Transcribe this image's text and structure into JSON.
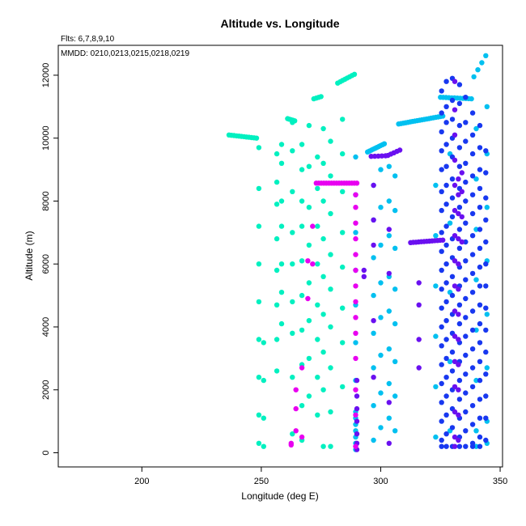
{
  "chart_data": {
    "type": "scatter",
    "title": "Altitude vs. Longitude",
    "xlabel": "Longitude (deg E)",
    "ylabel": "Altitude (m)",
    "xlim": [
      165,
      351
    ],
    "ylim": [
      -450,
      12950
    ],
    "xticks": [
      200,
      250,
      300,
      350
    ],
    "yticks": [
      0,
      2000,
      4000,
      6000,
      8000,
      10000,
      12000
    ],
    "grid": false,
    "annotations": {
      "flights": "Flts: 6,7,8,9,10",
      "dates": "MMDD: 0210,0213,0215,0218,0219"
    },
    "series": [
      {
        "color": "#00f0c0",
        "legs": [
          {
            "lon0": 236.5,
            "lon1": 248,
            "alt0": 10100,
            "alt1": 10000,
            "n": 12
          },
          {
            "lon0": 261,
            "lon1": 264,
            "alt0": 10620,
            "alt1": 10550,
            "n": 5
          },
          {
            "lon0": 272,
            "lon1": 275,
            "alt0": 11250,
            "alt1": 11320,
            "n": 4
          },
          {
            "lon0": 282,
            "lon1": 289,
            "alt0": 11750,
            "alt1": 12030,
            "n": 8
          }
        ],
        "columns": [
          {
            "lon": 249,
            "alts": [
              9700,
              8400,
              7200,
              6000,
              4800,
              3600,
              2400,
              1200,
              300
            ]
          },
          {
            "lon": 251,
            "alts": [
              3500,
              2300,
              1100,
              200
            ]
          },
          {
            "lon": 256.5,
            "alts": [
              9500,
              8600,
              7900,
              6800,
              5800,
              4700,
              3600,
              2600
            ]
          },
          {
            "lon": 258.5,
            "alts": [
              9800,
              9200,
              8000,
              7200,
              6000,
              5100,
              4100
            ]
          },
          {
            "lon": 263,
            "alts": [
              10500,
              9600,
              8300,
              7000,
              6000,
              4800,
              3800,
              2400,
              600
            ]
          },
          {
            "lon": 267,
            "alts": [
              9800,
              9000,
              8000,
              7200,
              6100,
              5000,
              3900,
              2800,
              1500,
              400
            ]
          },
          {
            "lon": 270,
            "alts": [
              10400,
              9100,
              7800,
              6600,
              5400,
              4200,
              3000,
              1800
            ]
          },
          {
            "lon": 273.5,
            "alts": [
              9400,
              8400,
              7200,
              6000,
              4700,
              3600,
              2400,
              1200
            ]
          },
          {
            "lon": 276,
            "alts": [
              10300,
              9200,
              8000,
              6800,
              5600,
              4400,
              3200,
              2000,
              200
            ]
          },
          {
            "lon": 279,
            "alts": [
              9900,
              8800,
              7600,
              6300,
              5200,
              4000,
              2700,
              1300,
              200
            ]
          },
          {
            "lon": 284,
            "alts": [
              10600,
              9500,
              8300,
              7000,
              5900,
              4600,
              3500,
              2100
            ]
          }
        ]
      },
      {
        "color": "#00c0f0",
        "legs": [
          {
            "lon0": 294.5,
            "lon1": 301.5,
            "alt0": 9560,
            "alt1": 9820,
            "n": 10
          },
          {
            "lon0": 307.5,
            "lon1": 326,
            "alt0": 10450,
            "alt1": 10700,
            "n": 20
          },
          {
            "lon0": 325,
            "lon1": 338,
            "alt0": 11300,
            "alt1": 11250,
            "n": 12
          },
          {
            "lon0": 339,
            "lon1": 344,
            "alt0": 11950,
            "alt1": 12620,
            "n": 4
          }
        ],
        "columns": [
          {
            "lon": 289.5,
            "alts": [
              9400,
              8200,
              7000,
              5800,
              4700,
              3500,
              2300,
              1300,
              1100,
              900,
              700,
              500,
              300,
              100
            ]
          },
          {
            "lon": 297,
            "alts": [
              8500,
              7400,
              6200,
              5000,
              3800,
              2700,
              1500,
              400
            ]
          },
          {
            "lon": 300,
            "alts": [
              9000,
              7800,
              6600,
              5400,
              4300,
              3100,
              1900,
              800
            ]
          },
          {
            "lon": 303.5,
            "alts": [
              9100,
              8000,
              6900,
              5600,
              4500,
              3300,
              2200,
              1100
            ]
          },
          {
            "lon": 306,
            "alts": [
              8800,
              7700,
              6500,
              5200,
              4100,
              2900,
              1800,
              700
            ]
          },
          {
            "lon": 323,
            "alts": [
              8500,
              6900,
              5300,
              3700,
              2100,
              500
            ]
          },
          {
            "lon": 329,
            "alts": [
              9500,
              7300,
              5100,
              2900,
              700
            ]
          },
          {
            "lon": 340,
            "alts": [
              10300,
              8700,
              7100,
              5500,
              3900,
              2300,
              700,
              200
            ]
          },
          {
            "lon": 344.5,
            "alts": [
              11000,
              9500,
              7800,
              6100,
              4400,
              2700,
              1000,
              300
            ]
          }
        ]
      },
      {
        "color": "#1838f0",
        "legs": [],
        "columns": [
          {
            "lon": 325.5,
            "alts": [
              11500,
              10800,
              10200,
              9600,
              9000,
              8300,
              7700,
              7000,
              6400,
              5800,
              5200,
              4600,
              4000,
              3400,
              2800,
              2200,
              1600,
              1000,
              400,
              200
            ]
          },
          {
            "lon": 327.5,
            "alts": [
              11800,
              11000,
              10500,
              9800,
              9100,
              8500,
              7900,
              7200,
              6600,
              6000,
              5400,
              4800,
              4200,
              3600,
              3000,
              2400,
              1800,
              1200,
              600,
              200
            ]
          },
          {
            "lon": 330,
            "alts": [
              11900,
              11200,
              10600,
              10000,
              9400,
              8700,
              8100,
              7500,
              6800,
              6200,
              5600,
              5000,
              4400,
              3800,
              3200,
              2600,
              2000,
              1400,
              800,
              200
            ]
          },
          {
            "lon": 333,
            "alts": [
              11700,
              11100,
              10400,
              9700,
              9100,
              8400,
              7800,
              7100,
              6500,
              5900,
              5300,
              4700,
              4100,
              3500,
              2900,
              2300,
              1700,
              1100,
              500,
              200
            ]
          },
          {
            "lon": 335.5,
            "alts": [
              11300,
              10500,
              9900,
              9200,
              8600,
              8000,
              7300,
              6700,
              6100,
              5500,
              4900,
              4300,
              3700,
              3100,
              2500,
              1900,
              1300,
              700,
              200
            ]
          },
          {
            "lon": 338.5,
            "alts": [
              10800,
              10100,
              9500,
              8800,
              8200,
              7600,
              6900,
              6300,
              5700,
              5100,
              4500,
              3900,
              3300,
              2700,
              2100,
              1500,
              900,
              300,
              200
            ]
          },
          {
            "lon": 341.5,
            "alts": [
              10400,
              9700,
              9000,
              8400,
              7800,
              7100,
              6500,
              5900,
              5300,
              4700,
              4100,
              3500,
              2900,
              2300,
              1700,
              1100,
              500,
              200
            ]
          },
          {
            "lon": 344,
            "alts": [
              9600,
              8900,
              8100,
              7400,
              6700,
              6000,
              5300,
              4600,
              3900,
              3200,
              2500,
              1800,
              1100,
              400
            ]
          }
        ]
      },
      {
        "color": "#6a10f0",
        "legs": [
          {
            "lon0": 296,
            "lon1": 302,
            "alt0": 9420,
            "alt1": 9440,
            "n": 5
          },
          {
            "lon0": 303,
            "lon1": 308,
            "alt0": 9450,
            "alt1": 9620,
            "n": 5
          },
          {
            "lon0": 312.5,
            "lon1": 326,
            "alt0": 6680,
            "alt1": 6760,
            "n": 13
          }
        ],
        "columns": [
          {
            "lon": 290,
            "alts": [
              2300,
              1800,
              1400,
              1000,
              600,
              300,
              100
            ]
          },
          {
            "lon": 293,
            "alts": [
              5800,
              5600
            ]
          },
          {
            "lon": 297,
            "alts": [
              8500,
              7400,
              6600,
              4200,
              2400
            ]
          },
          {
            "lon": 303.5,
            "alts": [
              7100,
              5700,
              1600,
              300
            ]
          },
          {
            "lon": 316,
            "alts": [
              5400,
              4700,
              3600,
              2700
            ]
          },
          {
            "lon": 331,
            "alts": [
              11800,
              10900,
              10100,
              9300,
              8500,
              7700,
              6900,
              6100,
              5300,
              4500,
              3700,
              2900,
              2100,
              1300,
              500,
              200
            ]
          },
          {
            "lon": 332.5,
            "alts": [
              8700,
              8200,
              7600,
              6800,
              6000,
              5200,
              4400,
              3600,
              2800,
              2000,
              1200,
              400
            ]
          },
          {
            "lon": 334,
            "alts": [
              8900,
              8300,
              7500,
              6700
            ]
          }
        ]
      },
      {
        "color": "#e800f0",
        "legs": [
          {
            "lon0": 273,
            "lon1": 290,
            "alt0": 8570,
            "alt1": 8570,
            "n": 17
          }
        ],
        "columns": [
          {
            "lon": 262.5,
            "alts": [
              300,
              250
            ]
          },
          {
            "lon": 264.5,
            "alts": [
              700,
              1400,
              2000
            ]
          },
          {
            "lon": 267,
            "alts": [
              2700,
              500
            ]
          },
          {
            "lon": 269.5,
            "alts": [
              6100,
              4900
            ]
          },
          {
            "lon": 271.5,
            "alts": [
              6000,
              7200
            ]
          },
          {
            "lon": 289.5,
            "alts": [
              8200,
              7800,
              7300,
              6800,
              6300,
              5800,
              5300,
              4800,
              4300,
              3800,
              3000,
              2000,
              1200,
              200
            ]
          }
        ]
      }
    ]
  }
}
